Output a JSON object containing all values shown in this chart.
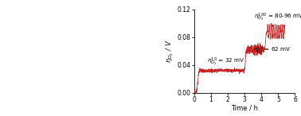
{
  "ylabel": "$\\eta_{O_2}$ / V",
  "xlabel": "Time / h",
  "ylim": [
    0,
    0.12
  ],
  "yticks": [
    0,
    0.04,
    0.08,
    0.12
  ],
  "xlim": [
    0,
    6
  ],
  "xticks": [
    0,
    1,
    2,
    3,
    4,
    5,
    6
  ],
  "line_color": "#cc2222",
  "background_color": "#ffffff",
  "font_size_axis": 6.0,
  "font_size_ann": 5.2,
  "font_size_tick": 5.5
}
